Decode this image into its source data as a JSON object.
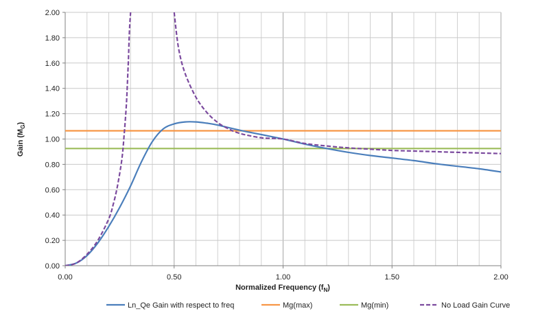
{
  "chart_data": {
    "type": "line",
    "title": "",
    "xlabel": "Normalized Frequency (f",
    "xlabel_sub": "N",
    "xlabel_suffix": ")",
    "ylabel": "Gain (M",
    "ylabel_sub": "G",
    "ylabel_suffix": ")",
    "xlim": [
      0,
      2.0
    ],
    "ylim": [
      0,
      2.0
    ],
    "x_ticks": [
      0.0,
      0.5,
      1.0,
      1.5,
      2.0
    ],
    "x_tick_labels": [
      "0.00",
      "0.50",
      "1.00",
      "1.50",
      "2.00"
    ],
    "x_minor_step": 0.1,
    "y_ticks": [
      0.0,
      0.2,
      0.4,
      0.6,
      0.8,
      1.0,
      1.2,
      1.4,
      1.6,
      1.8,
      2.0
    ],
    "y_tick_labels": [
      "0.00",
      "0.20",
      "0.40",
      "0.60",
      "0.80",
      "1.00",
      "1.20",
      "1.40",
      "1.60",
      "1.80",
      "2.00"
    ],
    "grid": true,
    "legend_position": "bottom",
    "series": [
      {
        "name": "Ln_Qe Gain with respect to freq",
        "color": "#4a7ebb",
        "style": "solid",
        "x": [
          0.0,
          0.05,
          0.1,
          0.15,
          0.2,
          0.25,
          0.3,
          0.35,
          0.4,
          0.45,
          0.5,
          0.55,
          0.6,
          0.65,
          0.7,
          0.8,
          0.9,
          1.0,
          1.1,
          1.2,
          1.3,
          1.4,
          1.5,
          1.6,
          1.7,
          1.8,
          1.9,
          2.0
        ],
        "y": [
          0.0,
          0.02,
          0.08,
          0.18,
          0.31,
          0.46,
          0.63,
          0.82,
          0.98,
          1.08,
          1.12,
          1.135,
          1.135,
          1.125,
          1.11,
          1.07,
          1.035,
          1.0,
          0.96,
          0.925,
          0.895,
          0.87,
          0.85,
          0.83,
          0.805,
          0.785,
          0.765,
          0.74
        ]
      },
      {
        "name": "Mg(max)",
        "color": "#f79646",
        "style": "solid",
        "x": [
          0.0,
          2.0
        ],
        "y": [
          1.065,
          1.065
        ]
      },
      {
        "name": "Mg(min)",
        "color": "#9bbb59",
        "style": "solid",
        "x": [
          0.0,
          2.0
        ],
        "y": [
          0.925,
          0.925
        ]
      },
      {
        "name": "No Load Gain Curve",
        "color": "#7b4a9e",
        "style": "dashed",
        "x": [
          0.0,
          0.05,
          0.1,
          0.15,
          0.2,
          0.22,
          0.24,
          0.26,
          0.27,
          0.28,
          0.285,
          0.29,
          0.295,
          0.3,
          null,
          0.5,
          0.52,
          0.55,
          0.6,
          0.65,
          0.7,
          0.75,
          0.8,
          0.9,
          1.0,
          1.1,
          1.2,
          1.3,
          1.4,
          1.5,
          1.6,
          1.7,
          1.8,
          1.9,
          2.0
        ],
        "y": [
          0.0,
          0.02,
          0.09,
          0.2,
          0.37,
          0.48,
          0.63,
          0.84,
          1.02,
          1.25,
          1.42,
          1.62,
          1.86,
          2.0,
          null,
          2.0,
          1.72,
          1.52,
          1.33,
          1.21,
          1.13,
          1.08,
          1.045,
          1.01,
          1.0,
          0.965,
          0.945,
          0.93,
          0.92,
          0.91,
          0.905,
          0.9,
          0.895,
          0.89,
          0.885
        ]
      }
    ]
  }
}
